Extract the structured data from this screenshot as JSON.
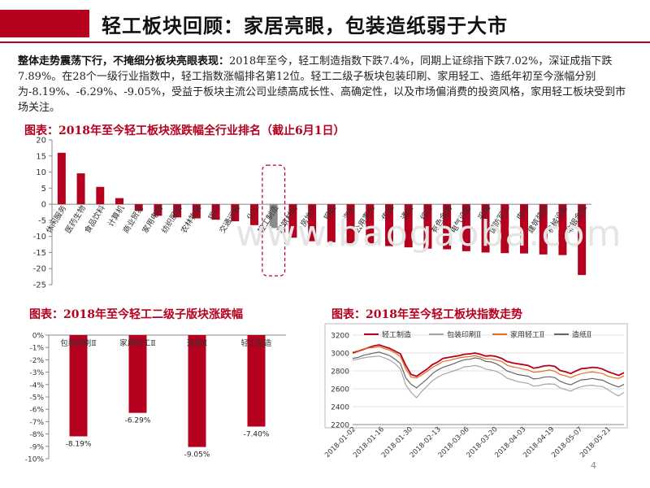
{
  "header": {
    "title": "轻工板块回顾：家居亮眼，包装造纸弱于大市"
  },
  "summary": {
    "lead": "整体走势震荡下行，不掩细分板块亮眼表现：",
    "text": "2018年至今，轻工制造指数下跌7.4%，同期上证综指下跌7.02%，深证成指下跌7.89%。在28个一级行业指数中，轻工指数涨幅排名第12位。轻工二级子板块包装印刷、家用轻工、造纸年初至今涨幅分别为-8.19%、-6.29%、-9.05%，受益于板块主流公司业绩高成长性、高确定性，以及市场偏消费的投资风格，家用轻工板块受到市场关注。"
  },
  "page_number": "4",
  "watermark": "www.baogaoba.com",
  "colors": {
    "accent": "#b5001e",
    "highlight_bar": "#8c8c8c",
    "grey_line": "#a6a6a6",
    "dark_line": "#666666",
    "orange_line": "#e07020"
  },
  "chart_data": [
    {
      "type": "bar",
      "title": "图表：2018年至今轻工板块涨跌幅全行业排名（截止6月1日）",
      "categories": [
        "休闲服务",
        "医药生物",
        "食品饮料",
        "计算机",
        "商业贸易",
        "家用电器",
        "纺织服装",
        "农林牧渔",
        "银行",
        "交通运输",
        "化工",
        "轻工制造",
        "建筑材料",
        "房地产",
        "钢铁",
        "汽车",
        "公用事业",
        "传媒",
        "通信",
        "综合",
        "有色金属",
        "电气设备",
        "采掘",
        "国防军工",
        "电子",
        "建筑装饰",
        "机械设备",
        "非银金融"
      ],
      "values": [
        16,
        9.6,
        5.4,
        1.9,
        -2.1,
        -3.6,
        -4.1,
        -4.4,
        -4.8,
        -5.3,
        -6.5,
        -7.4,
        -10.4,
        -11.5,
        -11.8,
        -12.1,
        -12.6,
        -13.0,
        -13.4,
        -13.8,
        -14.0,
        -14.6,
        -15.0,
        -15.2,
        -15.3,
        -15.6,
        -15.8,
        -22.0
      ],
      "highlight": "轻工制造",
      "ylim": [
        -25,
        20
      ],
      "yticks": [
        "20",
        "15",
        "10",
        "5",
        "0",
        "-5",
        "-10",
        "-15",
        "-20",
        "-25"
      ]
    },
    {
      "type": "bar",
      "title": "图表：2018年至今轻工二级子版块涨跌幅",
      "categories": [
        "包装印刷Ⅱ",
        "家用轻工Ⅱ",
        "造纸Ⅱ",
        "轻工制造"
      ],
      "values": [
        -8.19,
        -6.29,
        -9.05,
        -7.4
      ],
      "data_labels": [
        "-8.19%",
        "-6.29%",
        "-9.05%",
        "-7.40%"
      ],
      "ylim": [
        -10,
        0
      ],
      "yticks": [
        "0%",
        "-1%",
        "-2%",
        "-3%",
        "-4%",
        "-5%",
        "-6%",
        "-7%",
        "-8%",
        "-9%",
        "-10%"
      ]
    },
    {
      "type": "line",
      "title": "图表：2018年至今轻工板块指数走势",
      "x_ticks": [
        "2018-01-02",
        "2018-01-16",
        "2018-01-30",
        "2018-02-13",
        "2018-03-06",
        "2018-03-20",
        "2018-04-03",
        "2018-04-19",
        "2018-05-07",
        "2018-05-21"
      ],
      "ylim": [
        2200,
        3200
      ],
      "yticks": [
        "3200",
        "3000",
        "2800",
        "2600",
        "2400",
        "2200"
      ],
      "series": [
        {
          "name": "轻工制造",
          "color": "#b5001e",
          "values": [
            3000,
            3020,
            3040,
            3060,
            3080,
            3090,
            3070,
            3050,
            3020,
            2990,
            2860,
            2760,
            2740,
            2780,
            2820,
            2870,
            2900,
            2940,
            2950,
            2960,
            2970,
            2985,
            2990,
            3000,
            2985,
            2965,
            2970,
            2960,
            2940,
            2905,
            2890,
            2880,
            2870,
            2860,
            2830,
            2840,
            2855,
            2860,
            2850,
            2805,
            2790,
            2770,
            2800,
            2825,
            2830,
            2840,
            2835,
            2820,
            2790,
            2770,
            2750,
            2780
          ]
        },
        {
          "name": "包装印刷Ⅱ",
          "color": "#a6a6a6",
          "values": [
            2920,
            2930,
            2945,
            2955,
            2960,
            2965,
            2945,
            2920,
            2880,
            2820,
            2640,
            2560,
            2500,
            2570,
            2630,
            2690,
            2730,
            2760,
            2780,
            2800,
            2820,
            2845,
            2850,
            2860,
            2845,
            2820,
            2810,
            2795,
            2765,
            2720,
            2700,
            2680,
            2670,
            2660,
            2630,
            2635,
            2650,
            2655,
            2650,
            2610,
            2590,
            2575,
            2605,
            2625,
            2635,
            2640,
            2630,
            2625,
            2590,
            2550,
            2520,
            2560
          ]
        },
        {
          "name": "家用轻工Ⅱ",
          "color": "#e07020",
          "values": [
            3010,
            3025,
            3045,
            3055,
            3060,
            3070,
            3050,
            3030,
            3000,
            2960,
            2820,
            2730,
            2720,
            2755,
            2795,
            2840,
            2870,
            2905,
            2915,
            2930,
            2945,
            2955,
            2960,
            2970,
            2955,
            2935,
            2935,
            2920,
            2905,
            2865,
            2845,
            2835,
            2820,
            2810,
            2785,
            2790,
            2800,
            2810,
            2795,
            2760,
            2745,
            2725,
            2750,
            2770,
            2780,
            2790,
            2780,
            2770,
            2740,
            2725,
            2715,
            2745
          ]
        },
        {
          "name": "造纸Ⅱ",
          "color": "#666666",
          "values": [
            2940,
            2950,
            2975,
            2985,
            3000,
            3010,
            2990,
            2970,
            2930,
            2880,
            2720,
            2650,
            2610,
            2660,
            2710,
            2770,
            2810,
            2840,
            2860,
            2880,
            2905,
            2925,
            2930,
            2945,
            2935,
            2905,
            2900,
            2880,
            2845,
            2800,
            2780,
            2760,
            2750,
            2740,
            2710,
            2715,
            2730,
            2735,
            2725,
            2685,
            2660,
            2645,
            2675,
            2700,
            2705,
            2715,
            2705,
            2695,
            2665,
            2640,
            2620,
            2650
          ]
        }
      ]
    }
  ]
}
